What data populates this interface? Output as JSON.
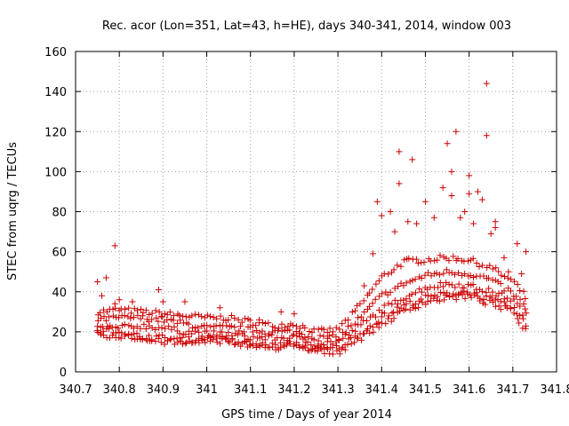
{
  "chart_data": {
    "type": "scatter",
    "title": "Rec. acor (Lon=351, Lat=43, h=HE), days 340-341, 2014, window 003",
    "xlabel": "GPS time / Days of year 2014",
    "ylabel": "STEC from uqrg / TECUs",
    "xlim": [
      340.7,
      341.8
    ],
    "ylim": [
      0,
      160
    ],
    "x_ticks": [
      340.7,
      340.8,
      340.9,
      341,
      341.1,
      341.2,
      341.3,
      341.4,
      341.5,
      341.6,
      341.7,
      341.8
    ],
    "x_tick_labels": [
      "340.7",
      "340.8",
      "340.9",
      "341",
      "341.1",
      "341.2",
      "341.3",
      "341.4",
      "341.5",
      "341.6",
      "341.7",
      "341.8"
    ],
    "y_ticks": [
      0,
      20,
      40,
      60,
      80,
      100,
      120,
      140,
      160
    ],
    "y_tick_labels": [
      "0",
      "20",
      "40",
      "60",
      "80",
      "100",
      "120",
      "140",
      "160"
    ],
    "grid": true,
    "marker": "+",
    "color": "#cc0000",
    "series": [
      {
        "points": [
          [
            340.75,
            45
          ],
          [
            340.76,
            38
          ],
          [
            340.77,
            47
          ],
          [
            340.79,
            63
          ],
          [
            340.79,
            34
          ],
          [
            340.8,
            36
          ],
          [
            340.83,
            35
          ],
          [
            340.89,
            41
          ],
          [
            340.9,
            35
          ],
          [
            340.95,
            35
          ],
          [
            341.03,
            32
          ],
          [
            341.12,
            26
          ],
          [
            341.17,
            30
          ],
          [
            341.2,
            29
          ],
          [
            341.36,
            43
          ],
          [
            341.38,
            59
          ],
          [
            341.39,
            85
          ],
          [
            341.4,
            78
          ],
          [
            341.42,
            80
          ],
          [
            341.43,
            70
          ],
          [
            341.44,
            110
          ],
          [
            341.44,
            94
          ],
          [
            341.46,
            75
          ],
          [
            341.47,
            106
          ],
          [
            341.48,
            74
          ],
          [
            341.5,
            85
          ],
          [
            341.52,
            77
          ],
          [
            341.54,
            92
          ],
          [
            341.55,
            114
          ],
          [
            341.56,
            100
          ],
          [
            341.56,
            88
          ],
          [
            341.57,
            120
          ],
          [
            341.58,
            77
          ],
          [
            341.59,
            80
          ],
          [
            341.6,
            98
          ],
          [
            341.6,
            89
          ],
          [
            341.61,
            74
          ],
          [
            341.62,
            90
          ],
          [
            341.63,
            86
          ],
          [
            341.64,
            144
          ],
          [
            341.64,
            118
          ],
          [
            341.65,
            69
          ],
          [
            341.66,
            75
          ],
          [
            341.66,
            72
          ],
          [
            341.68,
            57
          ],
          [
            341.69,
            50
          ],
          [
            341.71,
            64
          ],
          [
            341.72,
            49
          ],
          [
            341.73,
            60
          ]
        ]
      }
    ],
    "bands": [
      {
        "x": [
          340.75,
          340.8,
          340.85,
          340.9,
          340.95,
          341.0,
          341.05,
          341.1,
          341.15,
          341.2,
          341.25,
          341.3,
          341.35,
          341.4,
          341.45,
          341.5,
          341.55,
          341.6,
          341.65,
          341.7,
          341.73
        ],
        "y": [
          30,
          31,
          30,
          29,
          28,
          27,
          27,
          25,
          23,
          24,
          20,
          21,
          33,
          47,
          55,
          56,
          57,
          56,
          52,
          45,
          37
        ]
      },
      {
        "x": [
          340.75,
          340.8,
          340.85,
          340.9,
          340.95,
          341.0,
          341.05,
          341.1,
          341.15,
          341.2,
          341.25,
          341.3,
          341.35,
          341.4,
          341.45,
          341.5,
          341.55,
          341.6,
          341.65,
          341.7,
          341.73
        ],
        "y": [
          26,
          27,
          27,
          26,
          24,
          22,
          22,
          21,
          20,
          20,
          17,
          17,
          27,
          38,
          44,
          48,
          50,
          49,
          46,
          39,
          32
        ]
      },
      {
        "x": [
          340.75,
          340.8,
          340.85,
          340.9,
          340.95,
          341.0,
          341.05,
          341.1,
          341.15,
          341.2,
          341.25,
          341.3,
          341.35,
          341.4,
          341.45,
          341.5,
          341.55,
          341.6,
          341.65,
          341.7,
          341.73
        ],
        "y": [
          22,
          22,
          23,
          22,
          20,
          19,
          19,
          17,
          17,
          17,
          14,
          15,
          23,
          31,
          37,
          42,
          44,
          43,
          40,
          36,
          28
        ]
      },
      {
        "x": [
          340.75,
          340.8,
          340.85,
          340.9,
          340.95,
          341.0,
          341.05,
          341.1,
          341.15,
          341.2,
          341.25,
          341.3,
          341.35,
          341.4,
          341.45,
          341.5,
          341.55,
          341.6,
          341.65,
          341.7,
          341.73
        ],
        "y": [
          19,
          18,
          18,
          17,
          16,
          16,
          15,
          14,
          13,
          14,
          11,
          12,
          19,
          27,
          33,
          37,
          39,
          40,
          36,
          32,
          23
        ]
      },
      {
        "x": [
          340.75,
          340.8,
          340.85,
          340.9,
          340.95,
          341.0,
          341.05,
          341.1,
          341.15,
          341.2,
          341.25,
          341.3,
          341.35,
          341.4,
          341.45,
          341.5,
          341.55,
          341.6,
          341.65,
          341.7,
          341.73
        ],
        "y": [
          21,
          20,
          16,
          15,
          14,
          17,
          16,
          13,
          12,
          13,
          10,
          10,
          17,
          24,
          30,
          35,
          37,
          38,
          34,
          30,
          21
        ]
      }
    ]
  }
}
